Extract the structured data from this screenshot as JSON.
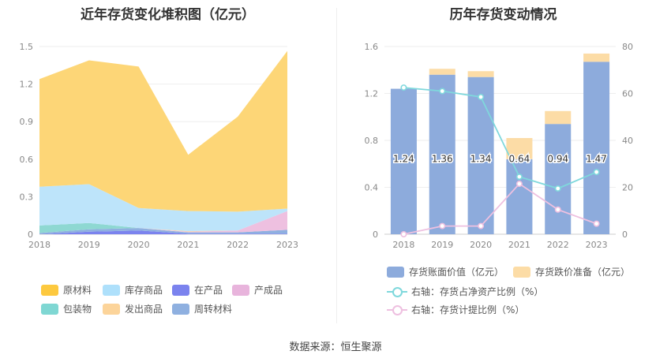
{
  "page": {
    "left_title": "近年存货变化堆积图（亿元）",
    "right_title": "历年存货变动情况",
    "source": "数据来源：恒生聚源"
  },
  "chart_data": [
    {
      "type": "area",
      "title": "近年存货变化堆积图（亿元）",
      "x": [
        "2018",
        "2019",
        "2020",
        "2021",
        "2022",
        "2023"
      ],
      "ylim": [
        0,
        1.5
      ],
      "yticks": [
        "0",
        "0.3",
        "0.6",
        "0.9",
        "1.2",
        "1.5"
      ],
      "stacked": true,
      "grid": true,
      "legend_position": "bottom",
      "series": [
        {
          "name": "在产品",
          "color": "#7b83ee",
          "values": [
            0.0,
            0.02,
            0.03,
            0.005,
            0.005,
            0.005
          ]
        },
        {
          "name": "周转材料",
          "color": "#8fb0e0",
          "values": [
            0.01,
            0.02,
            0.02,
            0.01,
            0.01,
            0.03
          ]
        },
        {
          "name": "产成品",
          "color": "#eec0e0",
          "values": [
            0.0,
            0.0,
            0.0,
            0.005,
            0.015,
            0.15
          ]
        },
        {
          "name": "包装物",
          "color": "#8ed8d2",
          "values": [
            0.06,
            0.05,
            0.0,
            0.0,
            0.0,
            0.0
          ]
        },
        {
          "name": "发出商品",
          "color": "#fcd8a0",
          "values": [
            0.0,
            0.0,
            0.0,
            0.005,
            0.0,
            0.0
          ]
        },
        {
          "name": "库存商品",
          "color": "#bde4fa",
          "values": [
            0.31,
            0.31,
            0.16,
            0.16,
            0.15,
            0.02
          ]
        },
        {
          "name": "原材料",
          "color": "#fdd677",
          "values": [
            0.86,
            0.99,
            1.13,
            0.45,
            0.76,
            1.26
          ]
        }
      ],
      "legend": [
        {
          "name": "原材料",
          "color": "#fdc93f"
        },
        {
          "name": "库存商品",
          "color": "#aee0fb"
        },
        {
          "name": "在产品",
          "color": "#7b83ee"
        },
        {
          "name": "产成品",
          "color": "#e8b4dc"
        },
        {
          "name": "包装物",
          "color": "#7fd7d3"
        },
        {
          "name": "发出商品",
          "color": "#fcd49a"
        },
        {
          "name": "周转材料",
          "color": "#8fb0e0"
        }
      ]
    },
    {
      "type": "bar",
      "title": "历年存货变动情况",
      "categories": [
        "2018",
        "2019",
        "2020",
        "2021",
        "2022",
        "2023"
      ],
      "ylim": [
        0,
        1.6
      ],
      "yticks": [
        "0",
        "0.4",
        "0.8",
        "1.2",
        "1.6"
      ],
      "y2lim": [
        0,
        80
      ],
      "y2ticks": [
        "0",
        "20",
        "40",
        "60",
        "80"
      ],
      "stacked": true,
      "grid": true,
      "legend_position": "bottom",
      "series": [
        {
          "name": "存货账面价值（亿元）",
          "color": "#8dabdc",
          "values": [
            1.24,
            1.36,
            1.34,
            0.64,
            0.94,
            1.47
          ],
          "labels": [
            "1.24",
            "1.36",
            "1.34",
            "0.64",
            "0.94",
            "1.47"
          ]
        },
        {
          "name": "存货跌价准备（亿元）",
          "color": "#fcdca6",
          "values": [
            0.0,
            0.05,
            0.05,
            0.18,
            0.11,
            0.07
          ]
        }
      ],
      "line_series": [
        {
          "name": "右轴：存货占净资产比例（%）",
          "color": "#7fd8dc",
          "axis": "right",
          "values": [
            62.5,
            61.0,
            58.5,
            24.5,
            19.5,
            26.5
          ]
        },
        {
          "name": "右轴：存货计提比例（%）",
          "color": "#eec0e0",
          "axis": "right",
          "values": [
            0.0,
            3.5,
            3.5,
            21.5,
            10.5,
            4.5
          ]
        }
      ]
    }
  ]
}
